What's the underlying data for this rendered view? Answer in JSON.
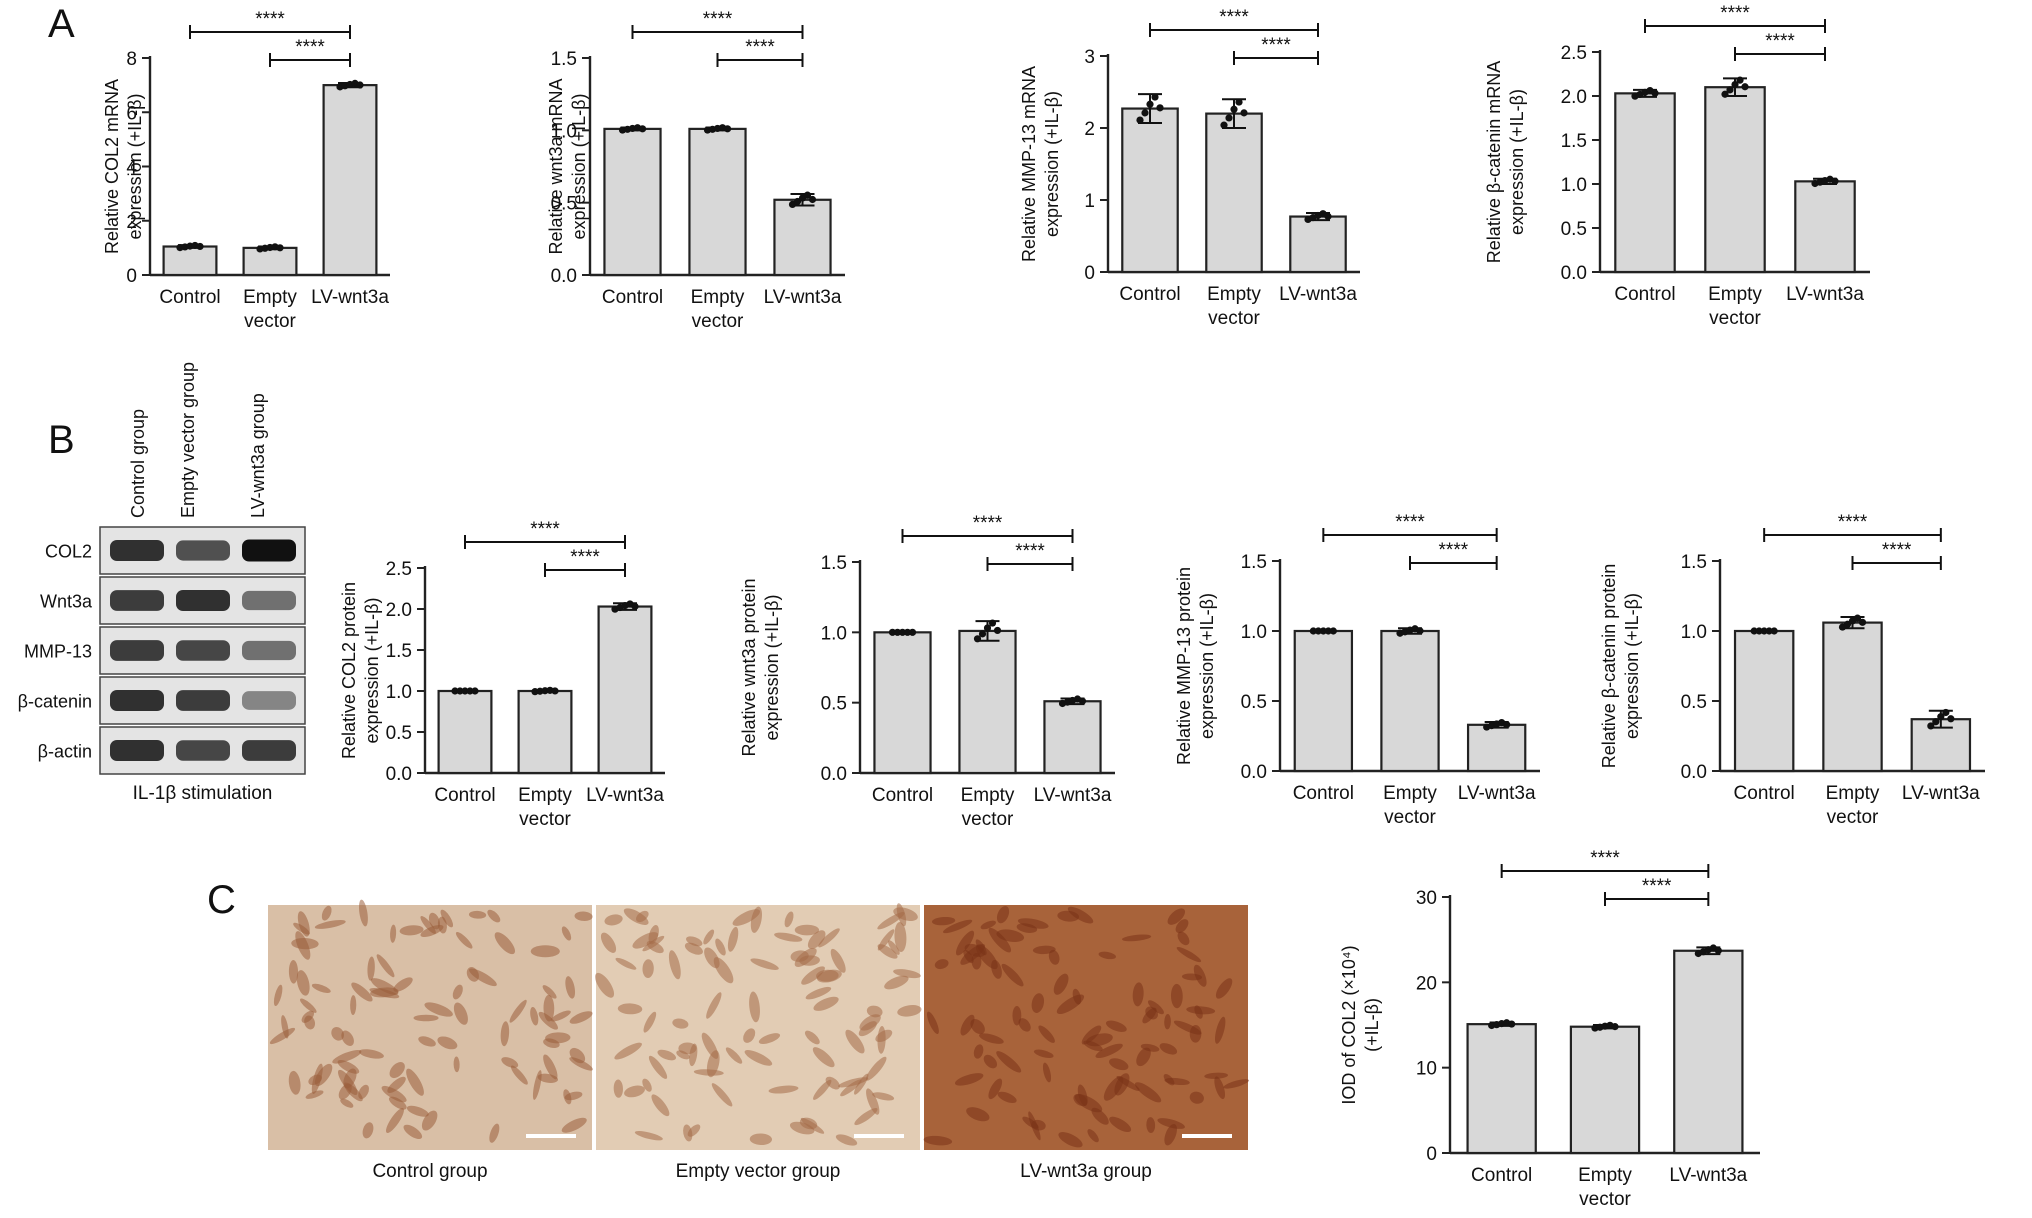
{
  "panels": {
    "a": "A",
    "b": "B",
    "c": "C"
  },
  "sig_label": "****",
  "categories": [
    [
      "Control"
    ],
    [
      "Empty",
      "vector"
    ],
    [
      "LV-wnt3a"
    ]
  ],
  "western": {
    "lanes": [
      "Control group",
      "Empty vector group",
      "LV-wnt3a group"
    ],
    "rows": [
      "COL2",
      "Wnt3a",
      "MMP-13",
      "β-catenin",
      "β-actin"
    ],
    "band_intensity": [
      [
        0.85,
        0.7,
        1.0
      ],
      [
        0.8,
        0.85,
        0.55
      ],
      [
        0.8,
        0.75,
        0.55
      ],
      [
        0.85,
        0.8,
        0.45
      ],
      [
        0.85,
        0.75,
        0.8
      ]
    ],
    "caption": "IL-1β stimulation"
  },
  "micrographs": {
    "captions": [
      "Control group",
      "Empty vector group",
      "LV-wnt3a group"
    ],
    "colors": [
      "#d9bfa6",
      "#e2ccb4",
      "#a8633a"
    ],
    "cell_colors": [
      "#9b5e3c",
      "#a46b48",
      "#7a3318"
    ]
  },
  "chart_data": [
    {
      "id": "A1",
      "type": "bar",
      "categories": [
        "Control",
        "Empty vector",
        "LV-wnt3a"
      ],
      "values": [
        1.05,
        1.0,
        7.0
      ],
      "errors": [
        0.05,
        0.05,
        0.08
      ],
      "ylabel": [
        "Relative COL2 mRNA",
        "expression (+IL-β)"
      ],
      "ylim": [
        0,
        8
      ],
      "yticks": [
        0,
        2,
        4,
        6,
        8
      ],
      "significance": [
        {
          "from": 0,
          "to": 2,
          "label": "****"
        },
        {
          "from": 1,
          "to": 2,
          "label": "****"
        }
      ]
    },
    {
      "id": "A2",
      "type": "bar",
      "categories": [
        "Control",
        "Empty vector",
        "LV-wnt3a"
      ],
      "values": [
        1.01,
        1.01,
        0.52
      ],
      "errors": [
        0.01,
        0.01,
        0.04
      ],
      "ylabel": [
        "Relative wnt3a mRNA",
        "expression (+IL-β)"
      ],
      "ylim": [
        0,
        1.5
      ],
      "yticks": [
        0.0,
        0.5,
        1.0,
        1.5
      ],
      "significance": [
        {
          "from": 0,
          "to": 2,
          "label": "****"
        },
        {
          "from": 1,
          "to": 2,
          "label": "****"
        }
      ]
    },
    {
      "id": "A3",
      "type": "bar",
      "categories": [
        "Control",
        "Empty vector",
        "LV-wnt3a"
      ],
      "values": [
        2.27,
        2.2,
        0.77
      ],
      "errors": [
        0.2,
        0.2,
        0.05
      ],
      "ylabel": [
        "Relative MMP-13 mRNA",
        "expression (+IL-β)"
      ],
      "ylim": [
        0,
        3
      ],
      "yticks": [
        0,
        1,
        2,
        3
      ],
      "significance": [
        {
          "from": 0,
          "to": 2,
          "label": "****"
        },
        {
          "from": 1,
          "to": 2,
          "label": "****"
        }
      ]
    },
    {
      "id": "A4",
      "type": "bar",
      "categories": [
        "Control",
        "Empty vector",
        "LV-wnt3a"
      ],
      "values": [
        2.03,
        2.1,
        1.03
      ],
      "errors": [
        0.04,
        0.1,
        0.03
      ],
      "ylabel": [
        "Relative β-catenin mRNA",
        "expression (+IL-β)"
      ],
      "ylim": [
        0,
        2.5
      ],
      "yticks": [
        0.0,
        0.5,
        1.0,
        1.5,
        2.0,
        2.5
      ],
      "significance": [
        {
          "from": 0,
          "to": 2,
          "label": "****"
        },
        {
          "from": 1,
          "to": 2,
          "label": "****"
        }
      ]
    },
    {
      "id": "B1",
      "type": "bar",
      "categories": [
        "Control",
        "Empty vector",
        "LV-wnt3a"
      ],
      "values": [
        1.0,
        1.0,
        2.03
      ],
      "errors": [
        0.0,
        0.01,
        0.04
      ],
      "ylabel": [
        "Relative COL2 protein",
        "expression (+IL-β)"
      ],
      "ylim": [
        0,
        2.5
      ],
      "yticks": [
        0.0,
        0.5,
        1.0,
        1.5,
        2.0,
        2.5
      ],
      "significance": [
        {
          "from": 0,
          "to": 2,
          "label": "****"
        },
        {
          "from": 1,
          "to": 2,
          "label": "****"
        }
      ]
    },
    {
      "id": "B2",
      "type": "bar",
      "categories": [
        "Control",
        "Empty vector",
        "LV-wnt3a"
      ],
      "values": [
        1.0,
        1.01,
        0.51
      ],
      "errors": [
        0.0,
        0.07,
        0.02
      ],
      "ylabel": [
        "Relative wnt3a protein",
        "expression (+IL-β)"
      ],
      "ylim": [
        0,
        1.5
      ],
      "yticks": [
        0.0,
        0.5,
        1.0,
        1.5
      ],
      "significance": [
        {
          "from": 0,
          "to": 2,
          "label": "****"
        },
        {
          "from": 1,
          "to": 2,
          "label": "****"
        }
      ]
    },
    {
      "id": "B3",
      "type": "bar",
      "categories": [
        "Control",
        "Empty vector",
        "LV-wnt3a"
      ],
      "values": [
        1.0,
        1.0,
        0.33
      ],
      "errors": [
        0.0,
        0.02,
        0.02
      ],
      "ylabel": [
        "Relative MMP-13 protein",
        "expression (+IL-β)"
      ],
      "ylim": [
        0,
        1.5
      ],
      "yticks": [
        0.0,
        0.5,
        1.0,
        1.5
      ],
      "significance": [
        {
          "from": 0,
          "to": 2,
          "label": "****"
        },
        {
          "from": 1,
          "to": 2,
          "label": "****"
        }
      ]
    },
    {
      "id": "B4",
      "type": "bar",
      "categories": [
        "Control",
        "Empty vector",
        "LV-wnt3a"
      ],
      "values": [
        1.0,
        1.06,
        0.37
      ],
      "errors": [
        0.0,
        0.04,
        0.06
      ],
      "ylabel": [
        "Relative β-catenin protein",
        "expression (+IL-β)"
      ],
      "ylim": [
        0,
        1.5
      ],
      "yticks": [
        0.0,
        0.5,
        1.0,
        1.5
      ],
      "significance": [
        {
          "from": 0,
          "to": 2,
          "label": "****"
        },
        {
          "from": 1,
          "to": 2,
          "label": "****"
        }
      ]
    },
    {
      "id": "C1",
      "type": "bar",
      "categories": [
        "Control",
        "Empty vector",
        "LV-wnt3a"
      ],
      "values": [
        15.1,
        14.8,
        23.7
      ],
      "errors": [
        0.2,
        0.2,
        0.4
      ],
      "ylabel": [
        "IOD of COL2 (×10⁴)",
        "(+IL-β)"
      ],
      "ylim": [
        0,
        30
      ],
      "yticks": [
        0,
        10,
        20,
        30
      ],
      "significance": [
        {
          "from": 0,
          "to": 2,
          "label": "****"
        },
        {
          "from": 1,
          "to": 2,
          "label": "****"
        }
      ]
    }
  ]
}
